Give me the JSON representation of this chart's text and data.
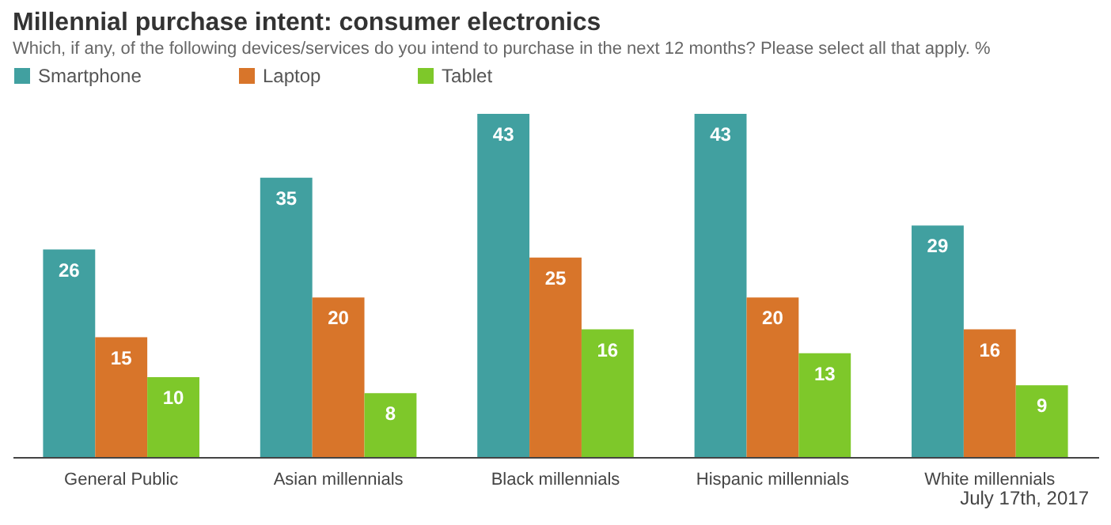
{
  "chart_data": {
    "type": "bar",
    "title": "Millennial purchase intent: consumer electronics",
    "subtitle": "Which, if any, of the following devices/services  do you intend to purchase in the next 12 months? Please select all that apply. %",
    "categories": [
      "General Public",
      "Asian millennials",
      "Black millennials",
      "Hispanic millennials",
      "White millennials"
    ],
    "series": [
      {
        "name": "Smartphone",
        "color": "#41a0a0",
        "values": [
          26,
          35,
          43,
          43,
          29
        ]
      },
      {
        "name": "Laptop",
        "color": "#d8752a",
        "values": [
          15,
          20,
          25,
          20,
          16
        ]
      },
      {
        "name": "Tablet",
        "color": "#7ec82a",
        "values": [
          10,
          8,
          16,
          13,
          9
        ]
      }
    ],
    "data_labels": true,
    "legend": "top",
    "grid": false,
    "annotations": [
      "July 17th, 2017"
    ]
  }
}
